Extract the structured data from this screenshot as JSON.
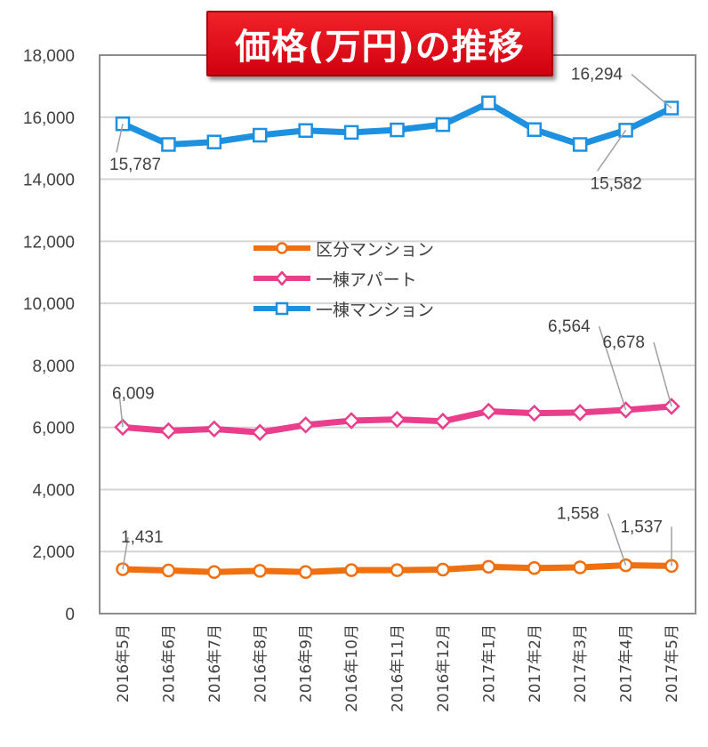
{
  "chart_data": {
    "type": "line",
    "title": "価格(万円)の推移",
    "categories": [
      "2016年5月",
      "2016年6月",
      "2016年7月",
      "2016年8月",
      "2016年9月",
      "2016年10月",
      "2016年11月",
      "2016年12月",
      "2017年1月",
      "2017年2月",
      "2017年3月",
      "2017年4月",
      "2017年5月"
    ],
    "ylim": [
      0,
      18000
    ],
    "yticks": [
      0,
      2000,
      4000,
      6000,
      8000,
      10000,
      12000,
      14000,
      16000,
      18000
    ],
    "ytick_labels": [
      "0",
      "2,000",
      "4,000",
      "6,000",
      "8,000",
      "10,000",
      "12,000",
      "14,000",
      "16,000",
      "18,000"
    ],
    "grid": true,
    "legend_placement": "center-left",
    "series": [
      {
        "name": "区分マンション",
        "color": "#f07010",
        "marker": "circle",
        "values": [
          1431,
          1390,
          1340,
          1380,
          1340,
          1400,
          1400,
          1420,
          1510,
          1470,
          1490,
          1558,
          1537
        ],
        "labels": [
          {
            "index": 0,
            "text": "1,431"
          },
          {
            "index": 11,
            "text": "1,558"
          },
          {
            "index": 12,
            "text": "1,537"
          }
        ]
      },
      {
        "name": "一棟アパート",
        "color": "#e83e8c",
        "marker": "diamond",
        "values": [
          6009,
          5890,
          5950,
          5840,
          6080,
          6220,
          6260,
          6200,
          6520,
          6460,
          6480,
          6564,
          6678
        ],
        "labels": [
          {
            "index": 0,
            "text": "6,009"
          },
          {
            "index": 11,
            "text": "6,564"
          },
          {
            "index": 12,
            "text": "6,678"
          }
        ]
      },
      {
        "name": "一棟マンション",
        "color": "#1e90e0",
        "marker": "square",
        "values": [
          15787,
          15120,
          15200,
          15420,
          15570,
          15510,
          15590,
          15760,
          16460,
          15600,
          15120,
          15582,
          16294
        ],
        "labels": [
          {
            "index": 0,
            "text": "15,787"
          },
          {
            "index": 11,
            "text": "15,582"
          },
          {
            "index": 12,
            "text": "16,294"
          }
        ]
      }
    ]
  }
}
